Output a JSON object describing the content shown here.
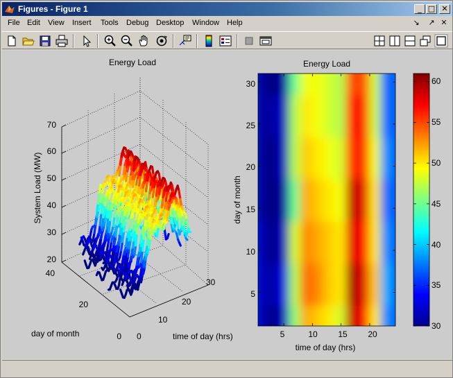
{
  "window": {
    "title": "Figures - Figure 1"
  },
  "menu": [
    "File",
    "Edit",
    "View",
    "Insert",
    "Tools",
    "Debug",
    "Desktop",
    "Window",
    "Help"
  ],
  "toolbar": {
    "tools": [
      "new-figure",
      "open-file",
      "save",
      "print",
      "edit-plot",
      "zoom-in",
      "zoom-out",
      "pan",
      "rotate-3d",
      "data-cursor",
      "colorbar",
      "legend",
      "hide-plot-tools",
      "show-plot-tools"
    ],
    "layout": [
      "tile-grid",
      "tile-vertical",
      "tile-horizontal",
      "float",
      "maximize"
    ]
  },
  "left_plot": {
    "title": "Energy Load",
    "zlabel": "System Load (MW)",
    "ylabel": "day of month",
    "xlabel": "time of day (hrs)",
    "z_ticks": [
      "20",
      "30",
      "40",
      "50",
      "60",
      "70"
    ],
    "y_ticks": [
      "0",
      "20",
      "40"
    ],
    "x_ticks": [
      "0",
      "10",
      "20",
      "30"
    ]
  },
  "right_plot": {
    "title": "Energy Load",
    "xlabel": "time of day (hrs)",
    "ylabel": "day of month",
    "x_ticks": [
      "5",
      "10",
      "15",
      "20"
    ],
    "y_ticks": [
      "5",
      "10",
      "15",
      "20",
      "25",
      "30"
    ],
    "colorbar_ticks": [
      "30",
      "35",
      "40",
      "45",
      "50",
      "55",
      "60"
    ]
  },
  "chart_data": [
    {
      "type": "line3d",
      "title": "Energy Load",
      "xlabel": "time of day (hrs)",
      "ylabel": "day of month",
      "zlabel": "System Load (MW)",
      "xlim": [
        0,
        30
      ],
      "ylim": [
        0,
        40
      ],
      "zlim": [
        20,
        70
      ],
      "grid": true,
      "hours": [
        1,
        3,
        5,
        7,
        9,
        11,
        13,
        15,
        17,
        19,
        21,
        23
      ],
      "typical_daily_profile": [
        31,
        30,
        30,
        36,
        47,
        49,
        49,
        48,
        57,
        57,
        50,
        41
      ]
    },
    {
      "type": "heatmap",
      "title": "Energy Load",
      "xlabel": "time of day (hrs)",
      "ylabel": "day of month",
      "xlim": [
        0.5,
        24.5
      ],
      "ylim": [
        1,
        31
      ],
      "colorbar": {
        "range": [
          30,
          61
        ],
        "colormap": "jet"
      },
      "hours": [
        1,
        3,
        5,
        7,
        9,
        11,
        13,
        15,
        17,
        19,
        21,
        23
      ],
      "days": [
        1,
        6,
        11,
        16,
        21,
        26,
        31
      ],
      "values": [
        [
          32,
          30,
          32,
          46,
          52,
          51,
          50,
          48,
          59,
          57,
          50,
          38
        ],
        [
          32,
          31,
          33,
          47,
          54,
          53,
          51,
          50,
          60,
          58,
          51,
          39
        ],
        [
          32,
          30,
          32,
          48,
          53,
          52,
          51,
          50,
          58,
          57,
          50,
          38
        ],
        [
          31,
          30,
          31,
          45,
          52,
          51,
          50,
          49,
          59,
          58,
          50,
          37
        ],
        [
          31,
          30,
          32,
          47,
          51,
          50,
          49,
          48,
          56,
          56,
          49,
          38
        ],
        [
          31,
          31,
          32,
          47,
          50,
          49,
          48,
          47,
          57,
          56,
          48,
          37
        ],
        [
          31,
          30,
          31,
          45,
          49,
          49,
          48,
          47,
          55,
          55,
          48,
          37
        ]
      ]
    }
  ]
}
